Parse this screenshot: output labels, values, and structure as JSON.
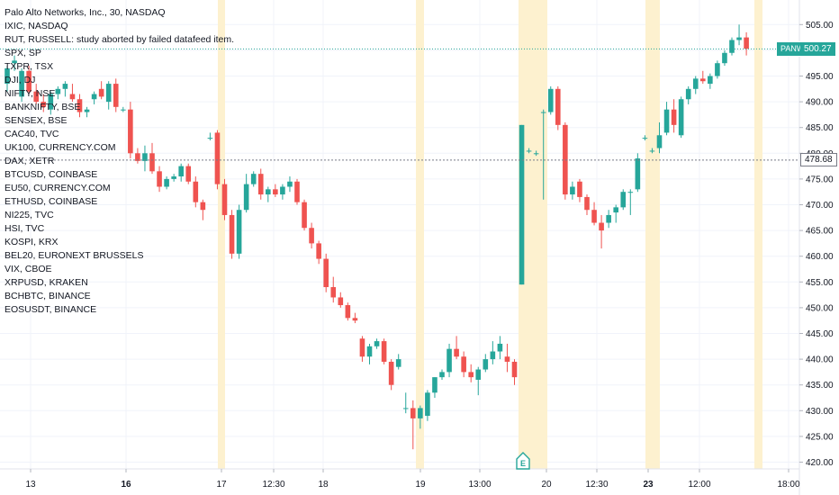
{
  "header": {
    "title": "Palo Alto Networks, Inc., 30, NASDAQ",
    "overlays": [
      "IXIC, NASDAQ",
      "RUT, RUSSELL: study aborted by failed datafeed item.",
      "SPX, SP",
      "TXPR, TSX",
      "DJI, DJ",
      "NIFTY, NSE",
      "BANKNIFTY, BSE",
      "SENSEX, BSE",
      "CAC40, TVC",
      "UK100, CURRENCY.COM",
      "DAX, XETR",
      "BTCUSD, COINBASE",
      "EU50, CURRENCY.COM",
      "ETHUSD, COINBASE",
      "NI225, TVC",
      "HSI, TVC",
      "KOSPI, KRX",
      "BEL20, EURONEXT BRUSSELS",
      "VIX, CBOE",
      "XRPUSD, KRAKEN",
      "BCHBTC, BINANCE",
      "EOSUSDT, BINANCE"
    ]
  },
  "price_tags": {
    "symbol_label": "PANW",
    "last_price": "500.27",
    "crosshair_price": "478.68"
  },
  "earnings_marker": "E",
  "colors": {
    "up": "#26a69a",
    "down": "#ef5350",
    "session_band": "#fdf1cf",
    "grid": "#f0f3fa",
    "last_price_line": "#26a69a",
    "crosshair": "#787b86"
  },
  "chart_data": {
    "type": "candlestick",
    "ylim": [
      418,
      507
    ],
    "y_ticks": [
      420,
      425,
      430,
      435,
      440,
      445,
      450,
      455,
      460,
      465,
      470,
      475,
      480,
      485,
      490,
      495,
      500,
      505
    ],
    "x_ticks": [
      "13",
      "16",
      "17",
      "12:30",
      "18",
      "19",
      "13:00",
      "20",
      "12:30",
      "23",
      "12:00",
      "18:00"
    ],
    "bold_x_ticks": [
      "16",
      "23"
    ],
    "last_price": 500.27,
    "crosshair_price": 478.68,
    "candles": [
      [
        493.5,
        497,
        492,
        496.5
      ],
      [
        497.5,
        499,
        496,
        498
      ],
      [
        491,
        496.5,
        490,
        496
      ],
      [
        496,
        497,
        491.5,
        492
      ],
      [
        492,
        493.5,
        489.5,
        490
      ],
      [
        490,
        491.5,
        488,
        489
      ],
      [
        488.5,
        492,
        487.5,
        491.5
      ],
      [
        491.5,
        493,
        490.5,
        492.5
      ],
      [
        492.5,
        494,
        491,
        493.5
      ],
      [
        491.5,
        493.5,
        490,
        490.5
      ],
      [
        490.5,
        491.5,
        487,
        488
      ],
      [
        488,
        489,
        487,
        488.5
      ],
      [
        490.5,
        492,
        489.5,
        491.5
      ],
      [
        492.5,
        494,
        490.5,
        491
      ],
      [
        490,
        494,
        488.5,
        493.5
      ],
      [
        493.5,
        494.5,
        488,
        489
      ],
      [
        488.5,
        489,
        488,
        488.5
      ],
      [
        488.5,
        490,
        479,
        480
      ],
      [
        480,
        481,
        478,
        478.5
      ],
      [
        478.5,
        481.5,
        476.5,
        480
      ],
      [
        480,
        482,
        476,
        476.5
      ],
      [
        476.5,
        477.5,
        472.5,
        473.5
      ],
      [
        473.5,
        475.5,
        473,
        475
      ],
      [
        475,
        476,
        474.5,
        475.5
      ],
      [
        475.5,
        478,
        474.5,
        477.5
      ],
      [
        477.5,
        478,
        474,
        474.5
      ],
      [
        474.5,
        475.5,
        469.5,
        470.5
      ],
      [
        470.5,
        471,
        467,
        469
      ],
      [
        483,
        484,
        482.5,
        483
      ],
      [
        484,
        484.5,
        473,
        474
      ],
      [
        474,
        475,
        467,
        468
      ],
      [
        468,
        469,
        459.5,
        460.5
      ],
      [
        460.5,
        470,
        459.5,
        469
      ],
      [
        469,
        476,
        468.5,
        474
      ],
      [
        474,
        476.5,
        473.5,
        476
      ],
      [
        476,
        477,
        471,
        472
      ],
      [
        472,
        473.5,
        470.5,
        473
      ],
      [
        473,
        474,
        471.5,
        472
      ],
      [
        472,
        474,
        471,
        473.5
      ],
      [
        473.5,
        475.5,
        472.5,
        474.5
      ],
      [
        474.5,
        475,
        470,
        470.5
      ],
      [
        470.5,
        471,
        465,
        465.5
      ],
      [
        465.5,
        466.5,
        461.5,
        462.5
      ],
      [
        462.5,
        463,
        458.5,
        459.5
      ],
      [
        459.5,
        460.5,
        453,
        454
      ],
      [
        454,
        456,
        451,
        452
      ],
      [
        452,
        453,
        450,
        450.5
      ],
      [
        450.5,
        451,
        447.5,
        448
      ],
      [
        448,
        449,
        447,
        447.5
      ],
      [
        444,
        444.5,
        439.5,
        440.5
      ],
      [
        440.5,
        443,
        439,
        442.5
      ],
      [
        442.5,
        444,
        442,
        443.5
      ],
      [
        443.5,
        444,
        439,
        439.5
      ],
      [
        439.5,
        440,
        434,
        435
      ],
      [
        438.5,
        441,
        438,
        440
      ],
      [
        430.5,
        433.5,
        429.5,
        430.5
      ],
      [
        430.5,
        432,
        422.5,
        428.5
      ],
      [
        428.5,
        431,
        426.5,
        430.5
      ],
      [
        429,
        434,
        428,
        433.5
      ],
      [
        433.5,
        436.5,
        432.5,
        436.5
      ],
      [
        436.5,
        438,
        436,
        437.5
      ],
      [
        437.5,
        443,
        436.5,
        442
      ],
      [
        442,
        444.5,
        440,
        440.5
      ],
      [
        440.5,
        441.5,
        436.5,
        437.5
      ],
      [
        437.5,
        439,
        435.5,
        436.5
      ],
      [
        436,
        438.5,
        433,
        438
      ],
      [
        438,
        441,
        437.5,
        440
      ],
      [
        440,
        443.5,
        439,
        441.5
      ],
      [
        441.5,
        444.5,
        440,
        443
      ],
      [
        440.5,
        443,
        437.5,
        439.5
      ],
      [
        439.5,
        440,
        435,
        436.5
      ],
      [
        454.5,
        485.5,
        454.5,
        485.5
      ],
      [
        480.5,
        481,
        480,
        480.5
      ],
      [
        480,
        480.5,
        479.5,
        480
      ],
      [
        488,
        488.5,
        471,
        488
      ],
      [
        488,
        493,
        487.5,
        492.5
      ],
      [
        492.5,
        493,
        484.5,
        485.5
      ],
      [
        485.5,
        486,
        471,
        472
      ],
      [
        472,
        474.5,
        471,
        473.5
      ],
      [
        474.5,
        475,
        470.5,
        471.5
      ],
      [
        471.5,
        472,
        468,
        469
      ],
      [
        469,
        470.5,
        466,
        466.5
      ],
      [
        466.5,
        468,
        461.5,
        465
      ],
      [
        466.5,
        469,
        465.5,
        468
      ],
      [
        468.5,
        470,
        466.5,
        469.5
      ],
      [
        469.5,
        473,
        469,
        472.5
      ],
      [
        472.5,
        473,
        468,
        472.5
      ],
      [
        473,
        480,
        472.5,
        479
      ],
      [
        483,
        483.5,
        482.5,
        483
      ],
      [
        480.5,
        481,
        480,
        480.5
      ],
      [
        481,
        486,
        480,
        483.5
      ],
      [
        484,
        490,
        483.5,
        488.5
      ],
      [
        488.5,
        490.5,
        484,
        485.5
      ],
      [
        483.5,
        491,
        483,
        490.5
      ],
      [
        490.5,
        493,
        489.5,
        492.5
      ],
      [
        492.5,
        495,
        491.5,
        494.5
      ],
      [
        494.5,
        496,
        493.5,
        494
      ],
      [
        493.5,
        495.5,
        492.5,
        495
      ],
      [
        495,
        498,
        494.5,
        497.5
      ],
      [
        497.5,
        500,
        497,
        499.5
      ],
      [
        499.5,
        502.5,
        499,
        502
      ],
      [
        502,
        505,
        501,
        502.5
      ],
      [
        502.5,
        503.5,
        499,
        500.3
      ]
    ]
  }
}
